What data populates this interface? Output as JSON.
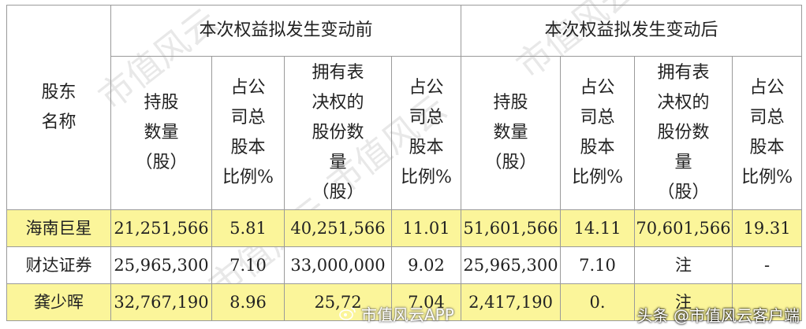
{
  "table": {
    "name_header": "股东名称",
    "group_before": "本次权益拟发生变动前",
    "group_after": "本次权益拟发生变动后",
    "subheaders": {
      "shares": [
        "持股",
        "数量",
        "（股）"
      ],
      "ratio": [
        "占公",
        "司总",
        "股本",
        "比例%"
      ],
      "voting_shares": [
        "拥有表",
        "决权的",
        "股份数",
        "量",
        "（股）"
      ],
      "voting_ratio": [
        "占公",
        "司总",
        "股本",
        "比例%"
      ]
    },
    "rows": [
      {
        "name": "海南巨星",
        "highlight": true,
        "cells": [
          "21,251,566",
          "5.81",
          "40,251,566",
          "11.01",
          "51,601,566",
          "14.11",
          "70,601,566",
          "19.31"
        ]
      },
      {
        "name": "财达证券",
        "highlight": false,
        "cells": [
          "25,965,300",
          "7.10",
          "33,000,000",
          "9.02",
          "25,965,300",
          "7.10",
          "注",
          "-"
        ]
      },
      {
        "name": "龚少晖",
        "highlight": true,
        "cells": [
          "32,767,190",
          "8.96",
          "25,72",
          "7.04",
          "2,417,190",
          "0.",
          "注",
          ""
        ]
      }
    ]
  },
  "watermark_text": "市值风云",
  "overlay": {
    "app_label": "市值风云APP",
    "source_label": "头条 @市值风云客户端"
  },
  "colors": {
    "highlight": "#fbf59a",
    "border": "#9a9a9a"
  }
}
